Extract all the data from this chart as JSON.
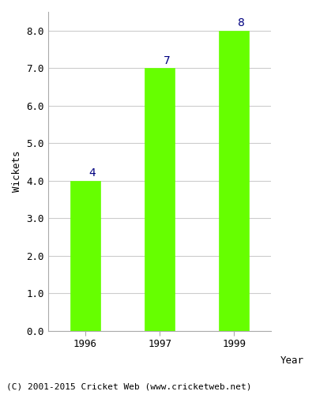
{
  "categories": [
    "1996",
    "1997",
    "1999"
  ],
  "values": [
    4,
    7,
    8
  ],
  "bar_color": "#66ff00",
  "bar_edge_color": "#66ff00",
  "label_color": "#000080",
  "ylabel": "Wickets",
  "xlabel": "Year",
  "ylim": [
    0,
    8.5
  ],
  "yticks": [
    0.0,
    1.0,
    2.0,
    3.0,
    4.0,
    5.0,
    6.0,
    7.0,
    8.0
  ],
  "label_fontsize": 10,
  "axis_label_fontsize": 9,
  "tick_fontsize": 9,
  "footer_text": "(C) 2001-2015 Cricket Web (www.cricketweb.net)",
  "footer_fontsize": 8,
  "background_color": "#ffffff",
  "grid_color": "#cccccc",
  "bar_width": 0.4
}
